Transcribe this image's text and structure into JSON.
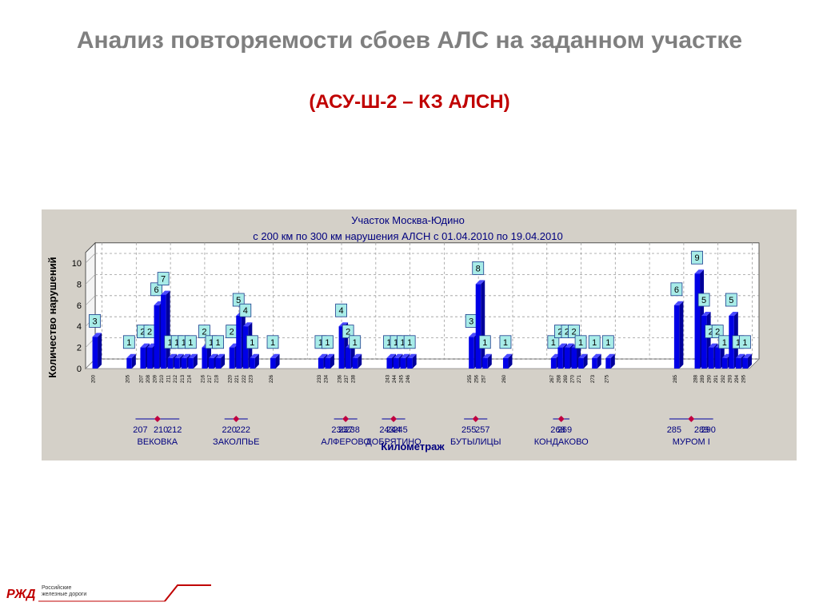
{
  "slide": {
    "title": "Анализ повторяемости сбоев АЛС на заданном участке",
    "subtitle": "(АСУ-Ш-2 – КЗ АЛСН)"
  },
  "logo": {
    "mark": "РЖД",
    "line1": "Российские",
    "line2": "железные дороги",
    "color": "#c00000"
  },
  "chart_data": {
    "type": "bar",
    "title": "Участок Москва-Юдино",
    "subtitle": "с 200 км по 300 км нарушения АЛСН с 01.04.2010 по 19.04.2010",
    "xlabel": "Километраж",
    "ylabel": "Количество нарушений",
    "ylim": [
      0,
      11
    ],
    "yticks": [
      0,
      2,
      4,
      6,
      8,
      10
    ],
    "grid": true,
    "bar_color": "#0000e6",
    "label_color": "#a8ece8",
    "categories": [
      "200",
      "205",
      "207",
      "208",
      "209",
      "210",
      "211",
      "212",
      "213",
      "214",
      "216",
      "217",
      "218",
      "220",
      "221",
      "222",
      "223",
      "226",
      "233",
      "234",
      "236",
      "237",
      "238",
      "243",
      "244",
      "245",
      "246",
      "255",
      "256",
      "257",
      "260",
      "267",
      "268",
      "269",
      "270",
      "271",
      "273",
      "275",
      "285",
      "288",
      "289",
      "290",
      "291",
      "292",
      "293",
      "294",
      "295"
    ],
    "values": [
      3,
      1,
      2,
      2,
      6,
      7,
      1,
      1,
      1,
      1,
      2,
      1,
      1,
      2,
      5,
      4,
      1,
      1,
      1,
      1,
      4,
      2,
      1,
      1,
      1,
      1,
      1,
      3,
      8,
      1,
      1,
      1,
      2,
      2,
      2,
      1,
      1,
      1,
      6,
      9,
      5,
      2,
      2,
      1,
      5,
      1,
      1
    ],
    "stations": [
      {
        "name": "ВЕКОВКА",
        "kms": [
          "207",
          "210",
          "212"
        ]
      },
      {
        "name": "ЗАКОЛПЬЕ",
        "kms": [
          "220",
          "222"
        ]
      },
      {
        "name": "АЛФЕРОВО",
        "kms": [
          "236",
          "237",
          "238"
        ]
      },
      {
        "name": "ДОБРЯТИНО",
        "kms": [
          "243",
          "244",
          "245"
        ]
      },
      {
        "name": "БУТЫЛИЦЫ",
        "kms": [
          "255",
          "257"
        ]
      },
      {
        "name": "КОНДАКОВО",
        "kms": [
          "268",
          "269"
        ]
      },
      {
        "name": "МУРОМ I",
        "kms": [
          "285",
          "289",
          "290"
        ]
      }
    ]
  }
}
